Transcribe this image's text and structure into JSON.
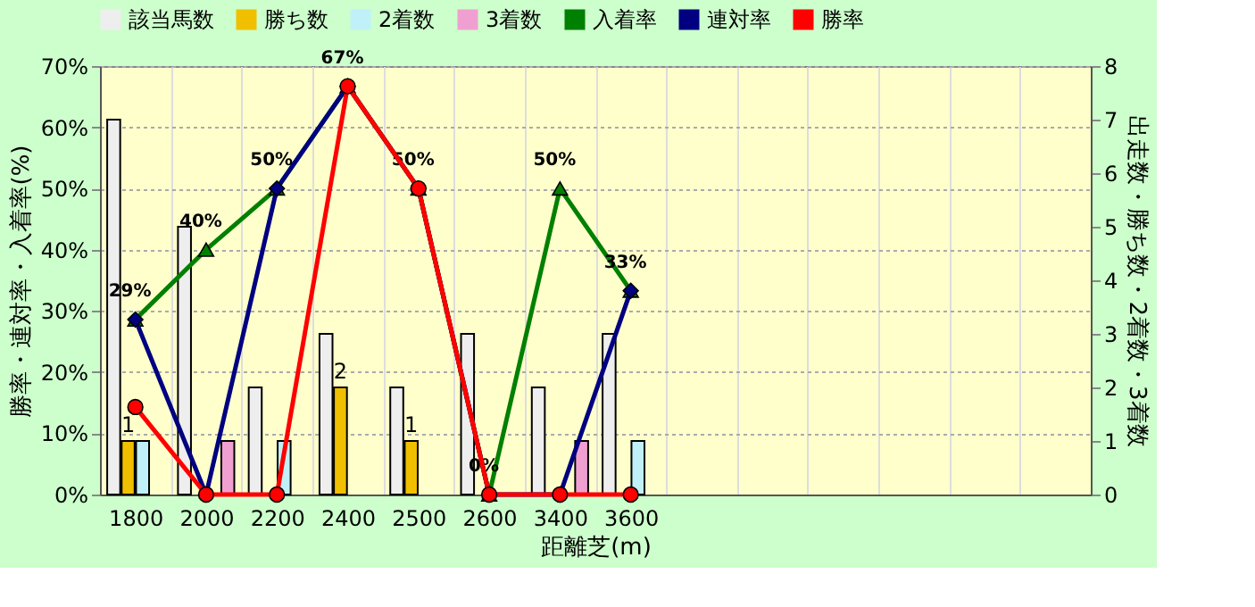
{
  "chart_data": {
    "type": "bar",
    "categories": [
      "1800",
      "2000",
      "2200",
      "2400",
      "2500",
      "2600",
      "3400",
      "3600",
      null,
      null,
      null,
      null,
      null,
      null
    ],
    "xlabel": "距離芝(m)",
    "ylabel": "勝率・連対率・入着率(%)",
    "y2label": "出走数・勝ち数・2着数・3着数",
    "series": [
      {
        "name": "該当馬数",
        "axis": "y2",
        "color": "#eeeeee",
        "values": [
          7,
          5,
          2,
          3,
          2,
          3,
          2,
          3,
          null,
          null,
          null,
          null,
          null,
          null
        ]
      },
      {
        "name": "勝ち数",
        "axis": "y2",
        "color": "#f0c000",
        "values": [
          1,
          null,
          null,
          2,
          1,
          null,
          null,
          null,
          null,
          null,
          null,
          null,
          null,
          null
        ],
        "value_labels": [
          "1",
          null,
          null,
          "2",
          "1",
          null,
          null,
          null,
          null,
          null,
          null,
          null,
          null,
          null
        ]
      },
      {
        "name": "2着数",
        "axis": "y2",
        "color": "#c0f0f8",
        "values": [
          1,
          null,
          1,
          null,
          null,
          null,
          null,
          1,
          null,
          null,
          null,
          null,
          null,
          null
        ]
      },
      {
        "name": "3着数",
        "axis": "y2",
        "color": "#f0a0d0",
        "values": [
          null,
          1,
          null,
          null,
          null,
          null,
          1,
          null,
          null,
          null,
          null,
          null,
          null,
          null
        ]
      },
      {
        "name": "入着率",
        "type": "line",
        "color": "#008000",
        "marker": "triangle",
        "values": [
          28.6,
          40,
          50,
          66.7,
          50,
          0,
          50,
          33.3,
          null,
          null,
          null,
          null,
          null,
          null
        ],
        "value_labels": [
          "29%",
          "40%",
          "50%",
          "67%",
          "50%",
          "0%",
          "50%",
          "33%",
          null,
          null,
          null,
          null,
          null,
          null
        ]
      },
      {
        "name": "連対率",
        "type": "line",
        "color": "#000080",
        "marker": "diamond",
        "values": [
          28.6,
          0,
          50,
          66.7,
          50,
          0,
          0,
          33.3,
          null,
          null,
          null,
          null,
          null,
          null
        ]
      },
      {
        "name": "勝率",
        "type": "line",
        "color": "#ff0000",
        "marker": "circle",
        "values": [
          14.3,
          0,
          0,
          66.7,
          50,
          0,
          0,
          0,
          null,
          null,
          null,
          null,
          null,
          null
        ]
      }
    ],
    "ylim": [
      0,
      70
    ],
    "yticks": [
      {
        "value": 0,
        "label": "0%"
      },
      {
        "value": 10,
        "label": "10%"
      },
      {
        "value": 20,
        "label": "20%"
      },
      {
        "value": 30,
        "label": "30%"
      },
      {
        "value": 40,
        "label": "40%"
      },
      {
        "value": 50,
        "label": "50%"
      },
      {
        "value": 60,
        "label": "60%"
      },
      {
        "value": 70,
        "label": "70%"
      }
    ],
    "y2lim": [
      0,
      8
    ],
    "y2ticks": [
      0,
      1,
      2,
      3,
      4,
      5,
      6,
      7,
      8
    ],
    "grid": true,
    "legend": "top"
  }
}
